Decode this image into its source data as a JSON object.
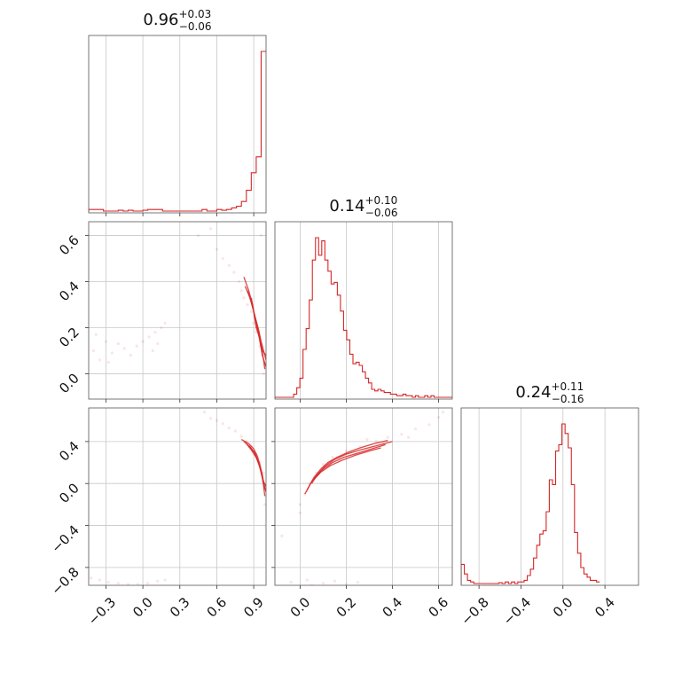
{
  "chart_data": {
    "type": "corner",
    "color": "#d62728",
    "parameters": [
      {
        "median": "0.96",
        "plus": "+0.03",
        "minus": "−0.06",
        "range": [
          -0.44,
          1.0
        ],
        "ticks": [
          -0.3,
          0.0,
          0.3,
          0.6,
          0.9
        ],
        "tick_labels": [
          "−0.3",
          "0.0",
          "0.3",
          "0.6",
          "0.9"
        ]
      },
      {
        "median": "0.14",
        "plus": "+0.10",
        "minus": "−0.06",
        "range": [
          -0.11,
          0.66
        ],
        "ticks": [
          0.0,
          0.2,
          0.4,
          0.6
        ],
        "tick_labels": [
          "0.0",
          "0.2",
          "0.4",
          "0.6"
        ]
      },
      {
        "median": "0.24",
        "plus": "+0.11",
        "minus": "−0.16",
        "range": [
          -0.97,
          0.72
        ],
        "ticks": [
          -0.8,
          -0.4,
          0.0,
          0.4
        ],
        "tick_labels": [
          "−0.8",
          "−0.4",
          "0.0",
          "0.4"
        ]
      }
    ],
    "histograms": [
      {
        "edges_start": -0.44,
        "bin_width": 0.04,
        "counts": [
          0.01,
          0.01,
          0.01,
          0,
          0,
          0,
          0.005,
          0,
          0.005,
          0,
          0,
          0.005,
          0.01,
          0.01,
          0.01,
          0,
          0,
          0,
          0,
          0,
          0,
          0,
          0,
          0.01,
          0,
          0,
          0.01,
          0.005,
          0.01,
          0.02,
          0.03,
          0.06,
          0.13,
          0.24,
          0.34,
          1.0
        ]
      },
      {
        "edges_start": -0.11,
        "bin_width": 0.01355,
        "counts": [
          0,
          0,
          0,
          0,
          0,
          0,
          0.02,
          0.06,
          0.12,
          0.3,
          0.43,
          0.61,
          0.86,
          1.0,
          0.89,
          0.98,
          0.86,
          0.79,
          0.71,
          0.72,
          0.64,
          0.54,
          0.42,
          0.36,
          0.27,
          0.21,
          0.22,
          0.2,
          0.16,
          0.12,
          0.09,
          0.05,
          0.04,
          0.05,
          0.04,
          0.03,
          0.03,
          0.02,
          0.02,
          0.01,
          0.01,
          0.02,
          0.01,
          0.01,
          0.0,
          0.01,
          0.0,
          0.0,
          0.01,
          0.0,
          0.01,
          0.0,
          0.0,
          0.0,
          0.0,
          0.0,
          0.0
        ]
      },
      {
        "edges_start": -0.97,
        "bin_width": 0.03,
        "counts": [
          0.12,
          0.06,
          0.02,
          0.01,
          0,
          0,
          0,
          0,
          0,
          0,
          0,
          0,
          0.005,
          0,
          0.01,
          0,
          0.01,
          0,
          0.01,
          0.01,
          0.02,
          0.05,
          0.09,
          0.16,
          0.24,
          0.31,
          0.33,
          0.45,
          0.65,
          0.62,
          0.83,
          0.87,
          1.0,
          0.94,
          0.85,
          0.62,
          0.32,
          0.19,
          0.1,
          0.06,
          0.04,
          0.02,
          0.02,
          0.01
        ]
      }
    ],
    "scatter": {
      "p0_p1": [
        [
          -0.4,
          0.1
        ],
        [
          -0.35,
          0.06
        ],
        [
          -0.3,
          0.14
        ],
        [
          -0.25,
          0.09
        ],
        [
          -0.2,
          0.13
        ],
        [
          -0.15,
          0.11
        ],
        [
          -0.1,
          0.08
        ],
        [
          -0.05,
          0.12
        ],
        [
          0.0,
          0.14
        ],
        [
          0.05,
          0.16
        ],
        [
          0.1,
          0.18
        ],
        [
          0.15,
          0.2
        ],
        [
          0.18,
          0.22
        ],
        [
          0.08,
          0.1
        ],
        [
          0.12,
          0.13
        ],
        [
          -0.38,
          0.17
        ],
        [
          -0.28,
          0.05
        ],
        [
          0.45,
          0.6
        ],
        [
          0.55,
          0.63
        ],
        [
          0.6,
          0.54
        ],
        [
          0.65,
          0.5
        ],
        [
          0.7,
          0.47
        ],
        [
          0.74,
          0.44
        ],
        [
          0.78,
          0.4
        ],
        [
          0.8,
          0.36
        ],
        [
          0.82,
          0.33
        ],
        [
          0.85,
          0.3
        ],
        [
          0.88,
          0.27
        ],
        [
          0.9,
          0.22
        ],
        [
          0.92,
          0.18
        ],
        [
          0.95,
          0.12
        ],
        [
          0.97,
          0.08
        ],
        [
          0.99,
          0.04
        ],
        [
          0.98,
          0.0
        ],
        [
          0.96,
          0.6
        ]
      ],
      "p0_p2": [
        [
          -0.42,
          -0.9
        ],
        [
          -0.35,
          -0.92
        ],
        [
          -0.28,
          -0.94
        ],
        [
          -0.2,
          -0.95
        ],
        [
          -0.12,
          -0.96
        ],
        [
          -0.04,
          -0.96
        ],
        [
          0.04,
          -0.95
        ],
        [
          0.12,
          -0.93
        ],
        [
          0.18,
          -0.92
        ],
        [
          0.5,
          0.68
        ],
        [
          0.55,
          0.62
        ],
        [
          0.6,
          0.6
        ],
        [
          0.65,
          0.57
        ],
        [
          0.7,
          0.53
        ],
        [
          0.75,
          0.5
        ],
        [
          0.8,
          0.45
        ],
        [
          0.84,
          0.4
        ],
        [
          0.88,
          0.35
        ],
        [
          0.92,
          0.28
        ],
        [
          0.95,
          0.2
        ],
        [
          0.98,
          0.1
        ],
        [
          0.99,
          -0.05
        ],
        [
          0.99,
          -0.2
        ],
        [
          0.97,
          0.02
        ]
      ],
      "p1_p2": [
        [
          -0.08,
          -0.5
        ],
        [
          0.0,
          -0.2
        ],
        [
          0.02,
          -0.1
        ],
        [
          0.04,
          0.0
        ],
        [
          0.07,
          0.1
        ],
        [
          0.1,
          0.18
        ],
        [
          0.14,
          0.25
        ],
        [
          0.2,
          0.31
        ],
        [
          0.26,
          0.35
        ],
        [
          0.33,
          0.4
        ],
        [
          0.38,
          0.44
        ],
        [
          0.44,
          0.47
        ],
        [
          0.5,
          0.52
        ],
        [
          0.56,
          0.56
        ],
        [
          0.6,
          0.63
        ],
        [
          0.62,
          0.68
        ],
        [
          0.0,
          -0.28
        ],
        [
          0.03,
          -0.07
        ],
        [
          0.05,
          -0.97
        ],
        [
          0.1,
          -0.95
        ],
        [
          0.15,
          -0.93
        ],
        [
          0.2,
          -0.96
        ],
        [
          0.25,
          -0.94
        ],
        [
          0.03,
          -0.92
        ],
        [
          -0.04,
          -0.94
        ],
        [
          0.29,
          0.42
        ],
        [
          0.36,
          0.38
        ],
        [
          0.47,
          0.44
        ]
      ]
    },
    "contours": {
      "p0_p1": [
        [
          [
            0.82,
            0.42
          ],
          [
            0.86,
            0.36
          ],
          [
            0.89,
            0.3
          ],
          [
            0.91,
            0.24
          ],
          [
            0.94,
            0.18
          ],
          [
            0.96,
            0.12
          ],
          [
            0.98,
            0.06
          ],
          [
            0.99,
            0.02
          ]
        ],
        [
          [
            0.83,
            0.38
          ],
          [
            0.87,
            0.33
          ],
          [
            0.9,
            0.27
          ],
          [
            0.93,
            0.2
          ],
          [
            0.95,
            0.14
          ],
          [
            0.97,
            0.08
          ],
          [
            1.0,
            0.03
          ]
        ],
        [
          [
            0.85,
            0.36
          ],
          [
            0.88,
            0.31
          ],
          [
            0.91,
            0.25
          ],
          [
            0.94,
            0.19
          ],
          [
            0.96,
            0.14
          ],
          [
            0.98,
            0.1
          ],
          [
            1.0,
            0.06
          ]
        ],
        [
          [
            0.88,
            0.33
          ],
          [
            0.9,
            0.27
          ],
          [
            0.92,
            0.2
          ],
          [
            0.95,
            0.15
          ],
          [
            0.97,
            0.1
          ],
          [
            1.0,
            0.08
          ]
        ]
      ],
      "p0_p2": [
        [
          [
            0.8,
            0.42
          ],
          [
            0.86,
            0.38
          ],
          [
            0.9,
            0.33
          ],
          [
            0.93,
            0.26
          ],
          [
            0.95,
            0.18
          ],
          [
            0.97,
            0.08
          ],
          [
            0.98,
            -0.02
          ],
          [
            0.99,
            -0.12
          ]
        ],
        [
          [
            0.82,
            0.4
          ],
          [
            0.87,
            0.35
          ],
          [
            0.91,
            0.29
          ],
          [
            0.94,
            0.2
          ],
          [
            0.96,
            0.1
          ],
          [
            0.98,
            0.0
          ],
          [
            1.0,
            -0.08
          ]
        ],
        [
          [
            0.84,
            0.38
          ],
          [
            0.88,
            0.32
          ],
          [
            0.92,
            0.25
          ],
          [
            0.95,
            0.16
          ],
          [
            0.97,
            0.06
          ],
          [
            0.99,
            -0.05
          ]
        ],
        [
          [
            0.86,
            0.36
          ],
          [
            0.9,
            0.3
          ],
          [
            0.93,
            0.22
          ],
          [
            0.96,
            0.12
          ],
          [
            0.98,
            0.02
          ],
          [
            1.0,
            -0.03
          ]
        ]
      ],
      "p1_p2": [
        [
          [
            0.02,
            -0.1
          ],
          [
            0.04,
            -0.02
          ],
          [
            0.06,
            0.06
          ],
          [
            0.09,
            0.14
          ],
          [
            0.12,
            0.2
          ],
          [
            0.16,
            0.25
          ],
          [
            0.21,
            0.3
          ],
          [
            0.26,
            0.34
          ],
          [
            0.32,
            0.38
          ],
          [
            0.38,
            0.41
          ]
        ],
        [
          [
            0.03,
            -0.06
          ],
          [
            0.05,
            0.02
          ],
          [
            0.08,
            0.1
          ],
          [
            0.11,
            0.17
          ],
          [
            0.15,
            0.23
          ],
          [
            0.2,
            0.28
          ],
          [
            0.26,
            0.32
          ],
          [
            0.33,
            0.36
          ],
          [
            0.4,
            0.4
          ]
        ],
        [
          [
            0.05,
            0.0
          ],
          [
            0.07,
            0.07
          ],
          [
            0.1,
            0.14
          ],
          [
            0.14,
            0.2
          ],
          [
            0.19,
            0.25
          ],
          [
            0.25,
            0.29
          ],
          [
            0.31,
            0.33
          ],
          [
            0.37,
            0.37
          ]
        ],
        [
          [
            0.06,
            0.04
          ],
          [
            0.09,
            0.11
          ],
          [
            0.13,
            0.17
          ],
          [
            0.18,
            0.22
          ],
          [
            0.24,
            0.27
          ],
          [
            0.3,
            0.31
          ],
          [
            0.35,
            0.34
          ]
        ]
      ]
    }
  }
}
